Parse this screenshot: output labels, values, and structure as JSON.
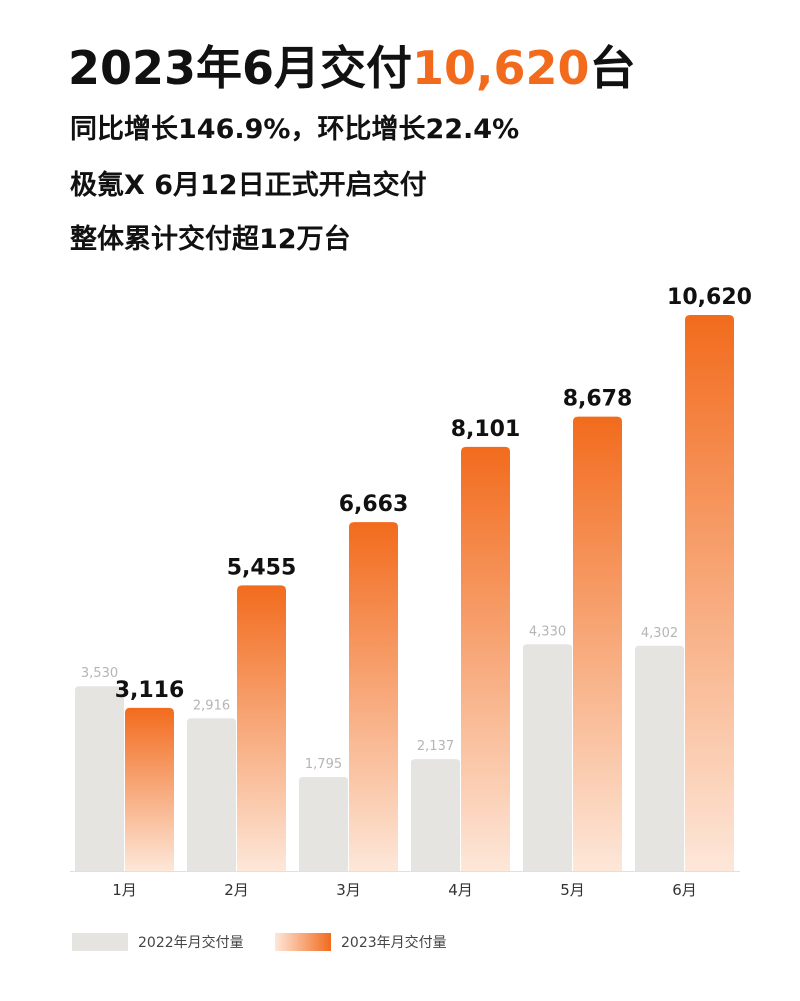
{
  "header": {
    "title_prefix": "2023年6月交付",
    "title_accent": "10,620",
    "title_suffix": "台",
    "line1": "同比增长146.9%，环比增长22.4%",
    "line2": "极氪X 6月12日正式开启交付",
    "line3": "整体累计交付超12万台"
  },
  "colors": {
    "accent": "#f26b1d",
    "bar_2022": "#e5e4e1",
    "bar_2023_top": "#f26b1d",
    "bar_2023_bottom": "#fde7d9"
  },
  "chart_data": {
    "type": "bar",
    "categories": [
      "1月",
      "2月",
      "3月",
      "4月",
      "5月",
      "6月"
    ],
    "series": [
      {
        "name": "2022年月交付量",
        "values": [
          3530,
          2916,
          1795,
          2137,
          4330,
          4302
        ],
        "labels": [
          "3,530",
          "2,916",
          "1,795",
          "2,137",
          "4,330",
          "4,302"
        ]
      },
      {
        "name": "2023年月交付量",
        "values": [
          3116,
          5455,
          6663,
          8101,
          8678,
          10620
        ],
        "labels": [
          "3,116",
          "5,455",
          "6,663",
          "8,101",
          "8,678",
          "10,620"
        ]
      }
    ],
    "title": "",
    "xlabel": "",
    "ylabel": "",
    "ylim": [
      0,
      10620
    ],
    "grid": false,
    "legend_position": "bottom-left"
  }
}
